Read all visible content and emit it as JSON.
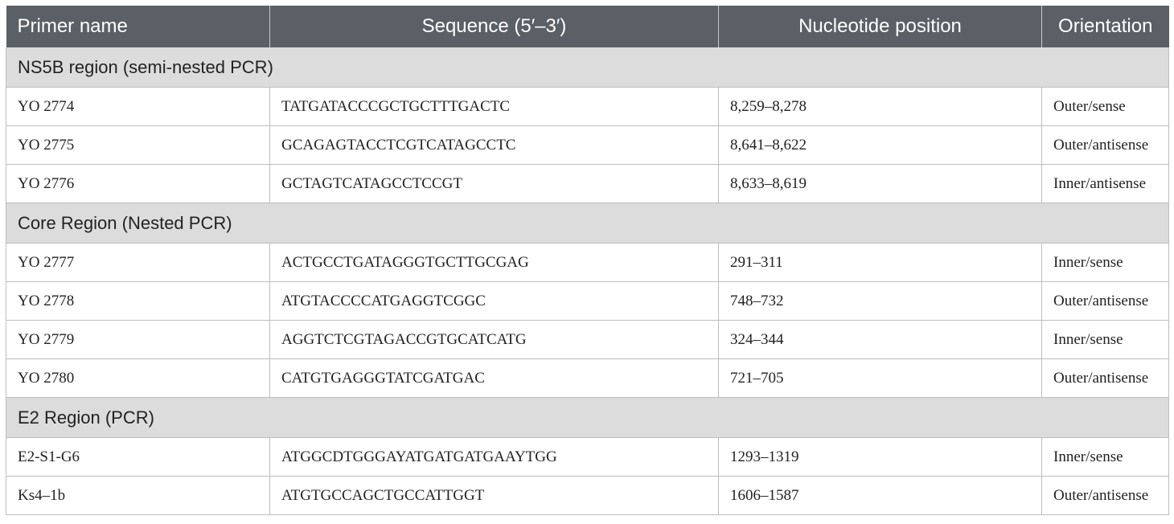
{
  "headers": [
    "Primer name",
    "Sequence (5′–3′)",
    "Nucleotide position",
    "Orientation"
  ],
  "groups": [
    {
      "title": "NS5B region (semi-nested PCR)",
      "rows": [
        {
          "name": "YO 2774",
          "sequence": "TATGATACCCGCTGCTTTGACTC",
          "position": "8,259–8,278",
          "orientation": "Outer/sense"
        },
        {
          "name": "YO 2775",
          "sequence": "GCAGAGTACCTCGTCATAGCCTC",
          "position": "8,641–8,622",
          "orientation": "Outer/antisense"
        },
        {
          "name": "YO 2776",
          "sequence": "GCTAGTCATAGCCTCCGT",
          "position": "8,633–8,619",
          "orientation": "Inner/antisense"
        }
      ]
    },
    {
      "title": "Core Region (Nested PCR)",
      "rows": [
        {
          "name": "YO 2777",
          "sequence": "ACTGCCTGATAGGGTGCTTGCGAG",
          "position": "291–311",
          "orientation": "Inner/sense"
        },
        {
          "name": "YO 2778",
          "sequence": "ATGTACCCCATGAGGTCGGC",
          "position": "748–732",
          "orientation": "Outer/antisense"
        },
        {
          "name": "YO 2779",
          "sequence": "AGGTCTCGTAGACCGTGCATCATG",
          "position": "324–344",
          "orientation": "Inner/sense"
        },
        {
          "name": "YO 2780",
          "sequence": "CATGTGAGGGTATCGATGAC",
          "position": "721–705",
          "orientation": "Outer/antisense"
        }
      ]
    },
    {
      "title": "E2 Region (PCR)",
      "rows": [
        {
          "name": "E2-S1-G6",
          "sequence": "ATGGCDTGGGAYATGATGATGAAYTGG",
          "position": "1293–1319",
          "orientation": "Inner/sense"
        },
        {
          "name": "Ks4–1b",
          "sequence": "ATGTGCCAGCTGCCATTGGT",
          "position": "1606–1587",
          "orientation": "Outer/antisense"
        }
      ]
    }
  ]
}
